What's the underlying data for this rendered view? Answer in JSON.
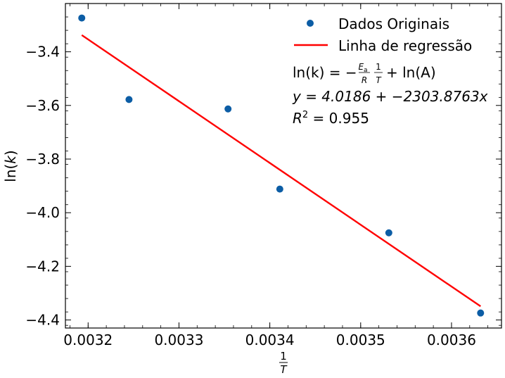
{
  "chart_data": {
    "type": "scatter",
    "xlabel": "1/T",
    "ylabel": "ln(k)",
    "xlim": [
      0.003175,
      0.003655
    ],
    "ylim": [
      -4.43,
      -3.22
    ],
    "x_ticks": [
      0.0032,
      0.0033,
      0.0034,
      0.0035,
      0.0036
    ],
    "x_tick_labels": [
      "0.0032",
      "0.0033",
      "0.0034",
      "0.0035",
      "0.0036"
    ],
    "y_ticks": [
      -3.4,
      -3.6,
      -3.8,
      -4.0,
      -4.2,
      -4.4
    ],
    "y_tick_labels": [
      "−3.4",
      "−3.6",
      "−3.8",
      "−4.0",
      "−4.2",
      "−4.4"
    ],
    "series": [
      {
        "name": "Dados Originais",
        "kind": "scatter",
        "color": "#0c5da5",
        "points": [
          {
            "x": 0.003193,
            "y": -3.274
          },
          {
            "x": 0.003245,
            "y": -3.578
          },
          {
            "x": 0.003354,
            "y": -3.613
          },
          {
            "x": 0.003411,
            "y": -3.912
          },
          {
            "x": 0.003531,
            "y": -4.075
          },
          {
            "x": 0.003632,
            "y": -4.374
          }
        ]
      },
      {
        "name": "Linha de regressão",
        "kind": "line",
        "color": "#ff0000",
        "intercept": 4.0186,
        "slope": -2303.8763,
        "x_range": [
          0.003193,
          0.003632
        ]
      }
    ],
    "annotations": {
      "equation_lhs": "ln(k) = −",
      "equation_ea": "E",
      "equation_ea_sub": "a",
      "equation_r": "R",
      "equation_one": "1",
      "equation_t": "T",
      "equation_rhs": "+ ln(A)",
      "fit_line": "y = 4.0186 + −2303.8763x",
      "r2_prefix": "R",
      "r2_exp": "2",
      "r2_value": " = 0.955"
    },
    "legend_placement": "top-right",
    "grid": false
  }
}
